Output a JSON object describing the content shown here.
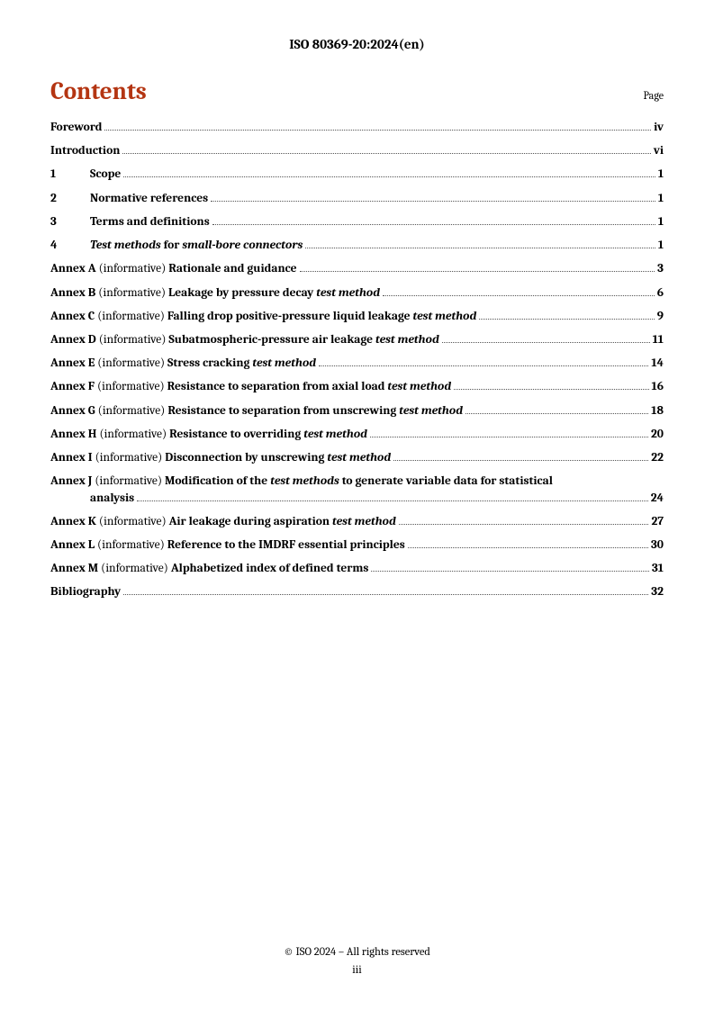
{
  "header": "ISO 80369-20:2024(en)",
  "contentsTitle": "Contents",
  "pageLabel": "Page",
  "footerLine1": "© ISO 2024 – All rights reserved",
  "footerLine2": "iii",
  "entries": {
    "foreword": {
      "label": "Foreword",
      "page": "iv"
    },
    "intro": {
      "label": "Introduction",
      "page": "vi"
    },
    "s1": {
      "num": "1",
      "label": "Scope",
      "page": "1"
    },
    "s2": {
      "num": "2",
      "label": "Normative references",
      "page": "1"
    },
    "s3": {
      "num": "3",
      "label": "Terms and definitions",
      "page": "1"
    },
    "s4": {
      "num": "4",
      "pre": "Test methods",
      "mid": " for ",
      "post": "small-bore connectors",
      "page": "1"
    },
    "aA": {
      "prefix": "Annex A",
      "info": " (informative)  ",
      "title": "Rationale and guidance",
      "page": "3"
    },
    "aB": {
      "prefix": "Annex B",
      "info": " (informative)  ",
      "t1": "Leakage by pressure decay ",
      "t2": "test method",
      "page": "6"
    },
    "aC": {
      "prefix": "Annex C",
      "info": " (informative)  ",
      "t1": "Falling drop positive-pressure liquid leakage ",
      "t2": "test method",
      "page": "9"
    },
    "aD": {
      "prefix": "Annex D",
      "info": " (informative)  ",
      "t1": "Subatmospheric-pressure air leakage ",
      "t2": "test method",
      "page": "11"
    },
    "aE": {
      "prefix": "Annex E",
      "info": " (informative)  ",
      "t1": "Stress cracking ",
      "t2": "test method",
      "page": "14"
    },
    "aF": {
      "prefix": "Annex F",
      "info": " (informative)  ",
      "t1": "Resistance to separation from axial load ",
      "t2": "test method",
      "page": "16"
    },
    "aG": {
      "prefix": "Annex G",
      "info": " (informative)  ",
      "t1": "Resistance to separation from unscrewing ",
      "t2": "test method",
      "page": "18"
    },
    "aH": {
      "prefix": "Annex H",
      "info": " (informative)  ",
      "t1": "Resistance to overriding ",
      "t2": "test method",
      "page": "20"
    },
    "aI": {
      "prefix": "Annex I",
      "info": " (informative)  ",
      "t1": "Disconnection by unscrewing ",
      "t2": "test method",
      "page": "22"
    },
    "aJ": {
      "prefix": "Annex J",
      "info": " (informative)  ",
      "t1": "Modification of the ",
      "t2": "test methods",
      "t3": " to generate variable data for statistical",
      "cont": "analysis",
      "page": "24"
    },
    "aK": {
      "prefix": "Annex K",
      "info": " (informative)  ",
      "t1": "Air leakage during aspiration ",
      "t2": "test method",
      "page": "27"
    },
    "aL": {
      "prefix": "Annex L",
      "info": " (informative)  ",
      "title": "Reference to the IMDRF essential principles",
      "page": "30"
    },
    "aM": {
      "prefix": "Annex M",
      "info": " (informative)  ",
      "title": "Alphabetized index of defined terms",
      "page": "31"
    },
    "bib": {
      "label": "Bibliography",
      "page": "32"
    }
  }
}
